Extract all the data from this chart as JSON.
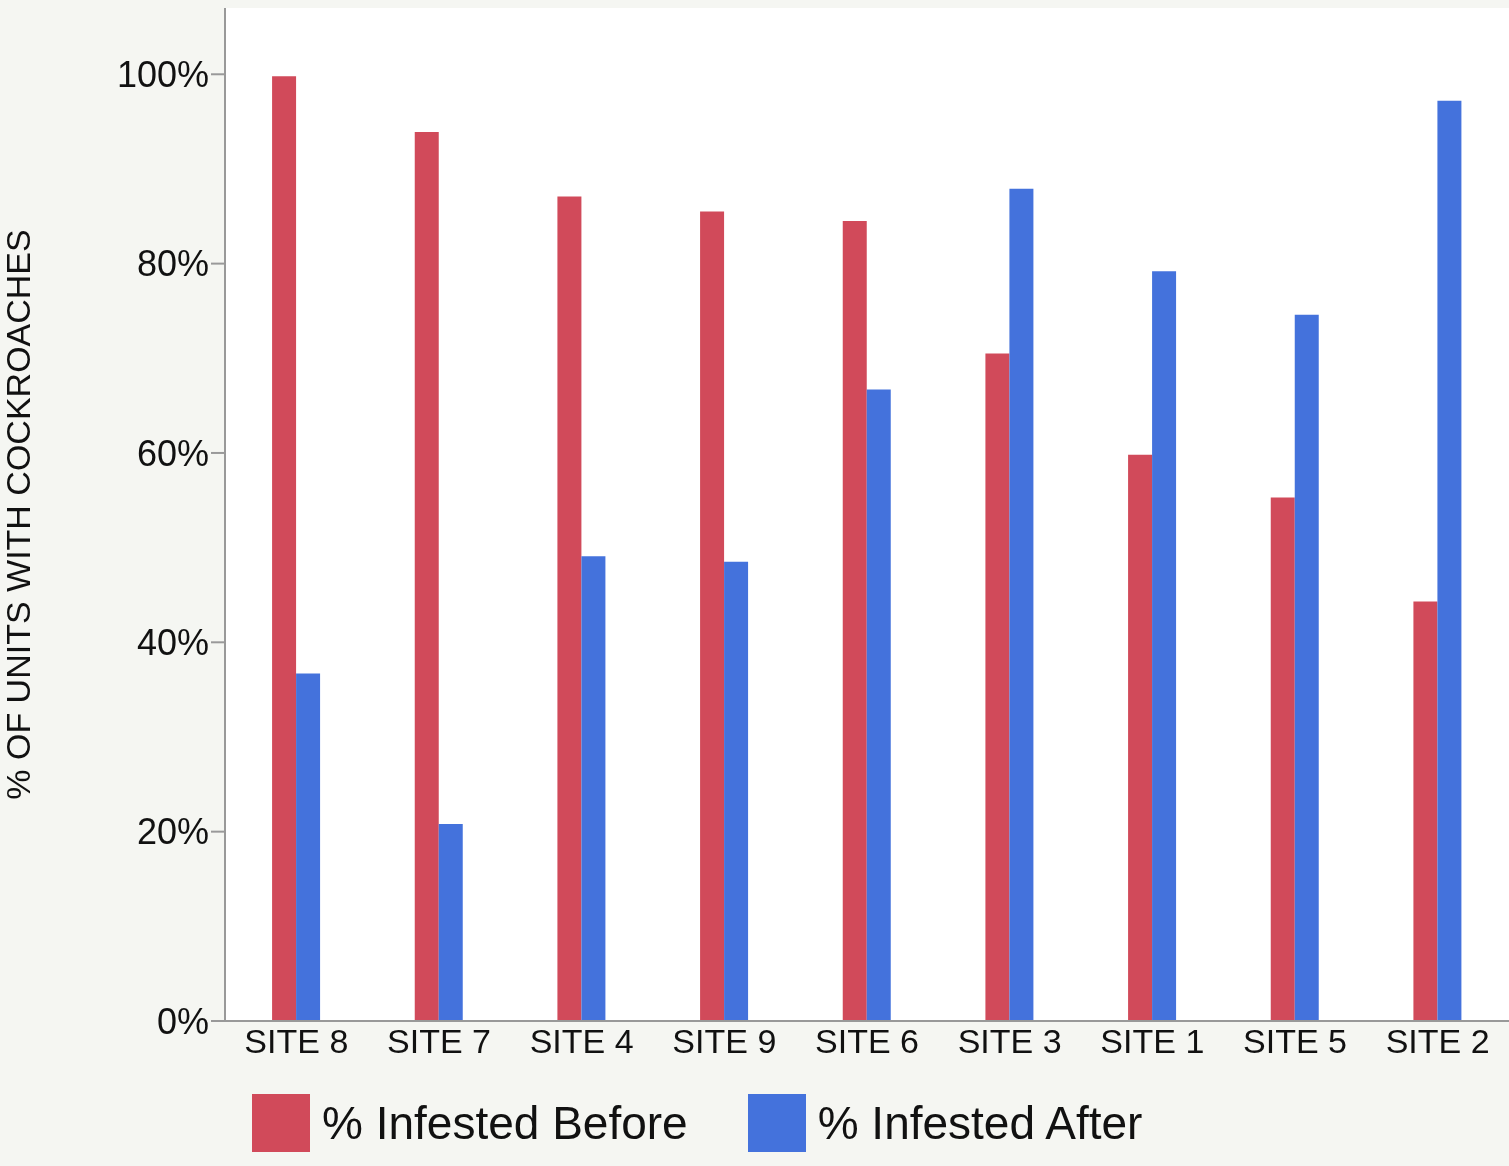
{
  "chart_data": {
    "type": "bar",
    "ylabel": "% OF UNITS WITH COCKROACHES",
    "categories": [
      "SITE 8",
      "SITE 7",
      "SITE 4",
      "SITE 9",
      "SITE 6",
      "SITE 3",
      "SITE 1",
      "SITE 5",
      "SITE 2"
    ],
    "series": [
      {
        "name": "% Infested Before",
        "color": "#d14a5a",
        "values": [
          99.8,
          93.9,
          87.1,
          85.5,
          84.5,
          70.5,
          59.8,
          55.3,
          44.3
        ]
      },
      {
        "name": "% Infested After",
        "color": "#4472dc",
        "values": [
          36.7,
          20.8,
          49.1,
          48.5,
          66.7,
          87.9,
          79.2,
          74.6,
          97.2
        ]
      }
    ],
    "ylim": [
      0,
      107
    ],
    "yticks": [
      {
        "value": 0,
        "label": "0%"
      },
      {
        "value": 20,
        "label": "20%"
      },
      {
        "value": 40,
        "label": "40%"
      },
      {
        "value": 60,
        "label": "60%"
      },
      {
        "value": 80,
        "label": "80%"
      },
      {
        "value": 100,
        "label": "100%"
      }
    ],
    "grid": false,
    "legend": "bottom"
  }
}
